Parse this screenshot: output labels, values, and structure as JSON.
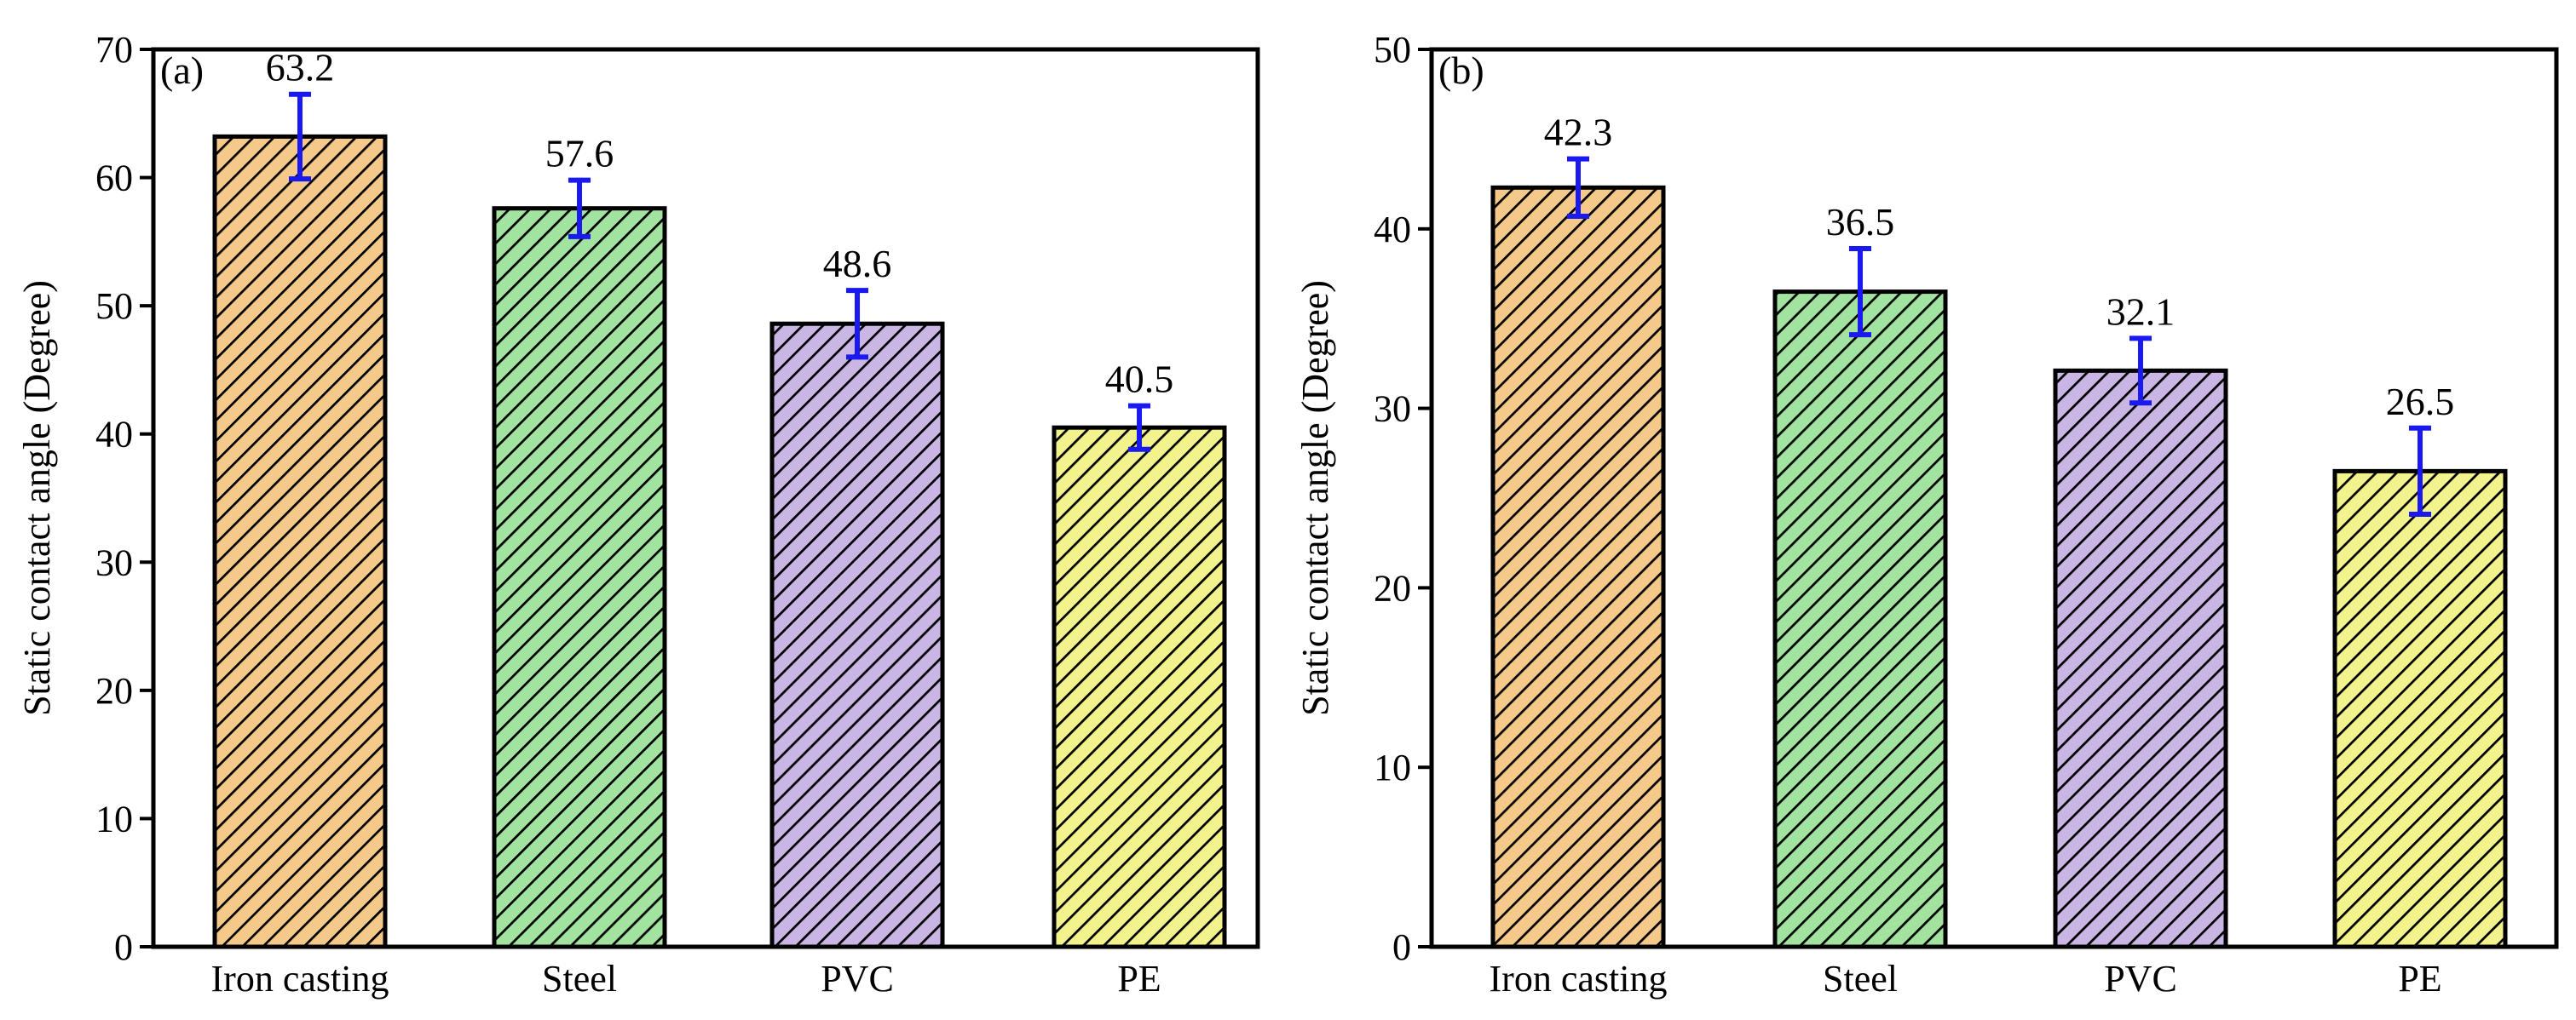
{
  "chart_data": [
    {
      "type": "bar",
      "panel_label": "(a)",
      "categories": [
        "Iron casting",
        "Steel",
        "PVC",
        "PE"
      ],
      "values": [
        63.2,
        57.6,
        48.6,
        40.5
      ],
      "errors": [
        3.3,
        2.2,
        2.6,
        1.7
      ],
      "value_labels": [
        "63.2",
        "57.6",
        "48.6",
        "40.5"
      ],
      "ylabel": "Static contact angle (Degree)",
      "xlabel": "",
      "ylim": [
        0,
        70
      ],
      "yticks": [
        0,
        10,
        20,
        30,
        40,
        50,
        60,
        70
      ],
      "bar_colors": [
        "#f5c98a",
        "#a3e3a0",
        "#c9b6e4",
        "#f3f38e"
      ],
      "error_color": "#1a1af0",
      "grid": false
    },
    {
      "type": "bar",
      "panel_label": "(b)",
      "categories": [
        "Iron casting",
        "Steel",
        "PVC",
        "PE"
      ],
      "values": [
        42.3,
        36.5,
        32.1,
        26.5
      ],
      "errors": [
        1.6,
        2.4,
        1.8,
        2.4
      ],
      "value_labels": [
        "42.3",
        "36.5",
        "32.1",
        "26.5"
      ],
      "ylabel": "Static contact angle (Degree)",
      "xlabel": "",
      "ylim": [
        0,
        50
      ],
      "yticks": [
        0,
        10,
        20,
        30,
        40,
        50
      ],
      "bar_colors": [
        "#f5c98a",
        "#a3e3a0",
        "#c9b6e4",
        "#f3f38e"
      ],
      "error_color": "#1a1af0",
      "grid": false
    }
  ]
}
